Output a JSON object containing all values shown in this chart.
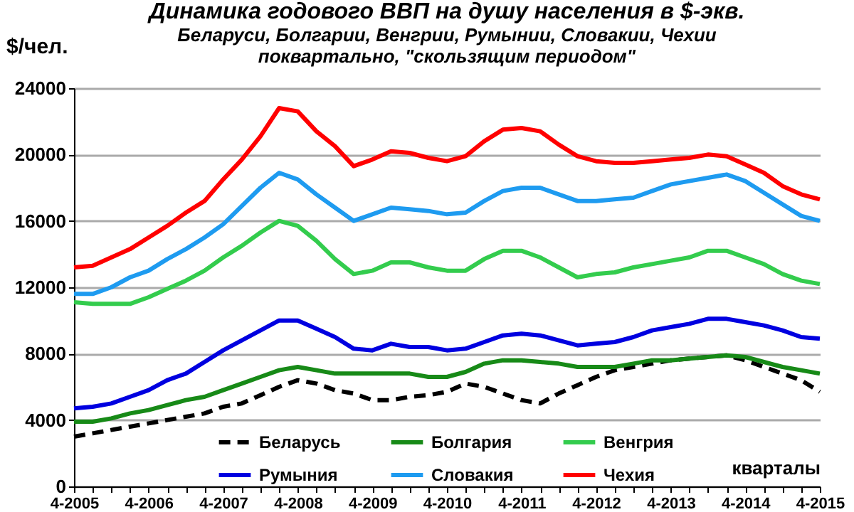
{
  "chart_data": {
    "type": "line",
    "title": "Динамика годового ВВП на душу населения в $-экв.",
    "subtitle": "Беларуси, Болгарии, Венгрии, Румынии, Словакии, Чехии\nпоквартально, \"скользящим периодом\"",
    "xlabel": "кварталы",
    "ylabel": "$/чел.",
    "categories": [
      "4-2005",
      null,
      null,
      null,
      "4-2006",
      null,
      null,
      null,
      "4-2007",
      null,
      null,
      null,
      "4-2008",
      null,
      null,
      null,
      "4-2009",
      null,
      null,
      null,
      "4-2010",
      null,
      null,
      null,
      "4-2011",
      null,
      null,
      null,
      "4-2012",
      null,
      null,
      null,
      "4-2013",
      null,
      null,
      null,
      "4-2014",
      null,
      null,
      null,
      "4-2015"
    ],
    "ylim": [
      0,
      24000
    ],
    "yticks": [
      0,
      4000,
      8000,
      12000,
      16000,
      20000,
      24000
    ],
    "grid": "y",
    "legend": "bottom",
    "marker": "none",
    "series": [
      {
        "name": "Беларусь",
        "color": "#000000",
        "line_style": "dashed",
        "values": [
          3000,
          3200,
          3400,
          3600,
          3800,
          4000,
          4200,
          4400,
          4800,
          5000,
          5500,
          6000,
          6400,
          6200,
          5800,
          5600,
          5200,
          5200,
          5400,
          5500,
          5700,
          6200,
          6000,
          5600,
          5200,
          5000,
          5600,
          6100,
          6600,
          7000,
          7200,
          7400,
          7600,
          7700,
          7800,
          7900,
          7600,
          7200,
          6800,
          6400,
          5700
        ]
      },
      {
        "name": "Болгария",
        "color": "#178a17",
        "line_style": "solid",
        "values": [
          3900,
          3900,
          4100,
          4400,
          4600,
          4900,
          5200,
          5400,
          5800,
          6200,
          6600,
          7000,
          7200,
          7000,
          6800,
          6800,
          6800,
          6800,
          6800,
          6600,
          6600,
          6900,
          7400,
          7600,
          7600,
          7500,
          7400,
          7200,
          7200,
          7200,
          7400,
          7600,
          7600,
          7700,
          7800,
          7900,
          7800,
          7500,
          7200,
          7000,
          6800
        ]
      },
      {
        "name": "Венгрия",
        "color": "#33cc4d",
        "line_style": "solid",
        "values": [
          11100,
          11000,
          11000,
          11000,
          11400,
          11900,
          12400,
          13000,
          13800,
          14500,
          15300,
          16000,
          15700,
          14800,
          13700,
          12800,
          13000,
          13500,
          13500,
          13200,
          13000,
          13000,
          13700,
          14200,
          14200,
          13800,
          13200,
          12600,
          12800,
          12900,
          13200,
          13400,
          13600,
          13800,
          14200,
          14200,
          13800,
          13400,
          12800,
          12400,
          12200
        ]
      },
      {
        "name": "Румыния",
        "color": "#0000e0",
        "line_style": "solid",
        "values": [
          4700,
          4800,
          5000,
          5400,
          5800,
          6400,
          6800,
          7500,
          8200,
          8800,
          9400,
          10000,
          10000,
          9500,
          9000,
          8300,
          8200,
          8600,
          8400,
          8400,
          8200,
          8300,
          8700,
          9100,
          9200,
          9100,
          8800,
          8500,
          8600,
          8700,
          9000,
          9400,
          9600,
          9800,
          10100,
          10100,
          9900,
          9700,
          9400,
          9000,
          8900
        ]
      },
      {
        "name": "Словакия",
        "color": "#1e9bf0",
        "line_style": "solid",
        "values": [
          11600,
          11600,
          12000,
          12600,
          13000,
          13700,
          14300,
          15000,
          15800,
          16900,
          18000,
          18900,
          18500,
          17600,
          16800,
          16000,
          16400,
          16800,
          16700,
          16600,
          16400,
          16500,
          17200,
          17800,
          18000,
          18000,
          17600,
          17200,
          17200,
          17300,
          17400,
          17800,
          18200,
          18400,
          18600,
          18800,
          18400,
          17700,
          17000,
          16300,
          16000
        ]
      },
      {
        "name": "Чехия",
        "color": "#ff0000",
        "line_style": "solid",
        "values": [
          13200,
          13300,
          13800,
          14300,
          15000,
          15700,
          16500,
          17200,
          18500,
          19700,
          21100,
          22800,
          22600,
          21400,
          20500,
          19300,
          19700,
          20200,
          20100,
          19800,
          19600,
          19900,
          20800,
          21500,
          21600,
          21400,
          20600,
          19900,
          19600,
          19500,
          19500,
          19600,
          19700,
          19800,
          20000,
          19900,
          19400,
          18900,
          18100,
          17600,
          17300
        ]
      }
    ]
  }
}
